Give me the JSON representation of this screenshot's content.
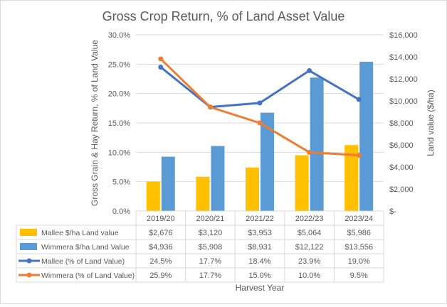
{
  "chart_data": {
    "type": "bar",
    "title": "Gross Crop Return, % of Land Asset Value",
    "xlabel": "Harvest Year",
    "ylabel_left": "Gross Grain & Hay Return, % of Land Value",
    "ylabel_right": "Land value ($/ha)",
    "categories": [
      "2019/20",
      "2020/21",
      "2021/22",
      "2022/23",
      "2023/24"
    ],
    "left_axis": {
      "min": 0,
      "max": 30,
      "step": 5,
      "ticks": [
        "0.0%",
        "5.0%",
        "10.0%",
        "15.0%",
        "20.0%",
        "25.0%",
        "30.0%"
      ]
    },
    "right_axis": {
      "min": 0,
      "max": 16000,
      "step": 2000,
      "ticks": [
        "$-",
        "$2,000",
        "$4,000",
        "$6,000",
        "$8,000",
        "$10,000",
        "$12,000",
        "$14,000",
        "$16,000"
      ]
    },
    "grid": true,
    "series": [
      {
        "name": "Mallee $/ha Land value",
        "kind": "bar",
        "axis": "right",
        "color": "#ffc000",
        "values": [
          2676,
          3120,
          3953,
          5064,
          5986
        ],
        "labels": [
          "$2,676",
          "$3,120",
          "$3,953",
          "$5,064",
          "$5,986"
        ]
      },
      {
        "name": "Wimmera $/ha Land Value",
        "kind": "bar",
        "axis": "right",
        "color": "#5b9bd5",
        "values": [
          4936,
          5908,
          8931,
          12122,
          13556
        ],
        "labels": [
          "$4,936",
          "$5,908",
          "$8,931",
          "$12,122",
          "$13,556"
        ]
      },
      {
        "name": "Mallee (% of Land Value)",
        "kind": "line",
        "axis": "left",
        "color": "#4472c4",
        "values": [
          24.5,
          17.7,
          18.4,
          23.9,
          19.0
        ],
        "labels": [
          "24.5%",
          "17.7%",
          "18.4%",
          "23.9%",
          "19.0%"
        ]
      },
      {
        "name": "Wimmera (% of Land Value)",
        "kind": "line",
        "axis": "left",
        "color": "#ed7d31",
        "values": [
          25.9,
          17.7,
          15.0,
          10.0,
          9.5
        ],
        "labels": [
          "25.9%",
          "17.7%",
          "15.0%",
          "10.0%",
          "9.5%"
        ]
      }
    ]
  }
}
